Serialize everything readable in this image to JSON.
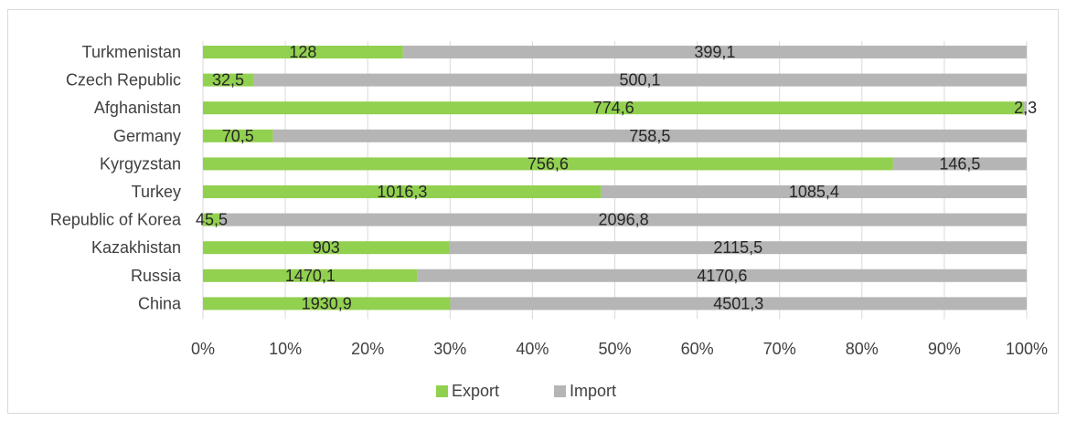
{
  "chart_data": {
    "type": "bar",
    "orientation": "horizontal",
    "stacking": "percent",
    "categories": [
      "Turkmenistan",
      "Czech Republic",
      "Afghanistan",
      "Germany",
      "Kyrgyzstan",
      "Turkey",
      "Republic of Korea",
      "Kazakhistan",
      "Russia",
      "China"
    ],
    "series": [
      {
        "name": "Export",
        "color": "#92d050",
        "values": [
          128,
          32.5,
          774.6,
          70.5,
          756.6,
          1016.3,
          45.5,
          903,
          1470.1,
          1930.9
        ],
        "labels": [
          "128",
          "32,5",
          "774,6",
          "70,5",
          "756,6",
          "1016,3",
          "45,5",
          "903",
          "1470,1",
          "1930,9"
        ]
      },
      {
        "name": "Import",
        "color": "#b5b5b5",
        "values": [
          399.1,
          500.1,
          2.3,
          758.5,
          146.5,
          1085.4,
          2096.8,
          2115.5,
          4170.6,
          4501.3
        ],
        "labels": [
          "399,1",
          "500,1",
          "2,3",
          "758,5",
          "146,5",
          "1085,4",
          "2096,8",
          "2115,5",
          "4170,6",
          "4501,3"
        ]
      }
    ],
    "x_ticks": [
      "0%",
      "10%",
      "20%",
      "30%",
      "40%",
      "50%",
      "60%",
      "70%",
      "80%",
      "90%",
      "100%"
    ],
    "xlim": [
      0,
      100
    ],
    "grid": true,
    "legend_position": "bottom"
  }
}
